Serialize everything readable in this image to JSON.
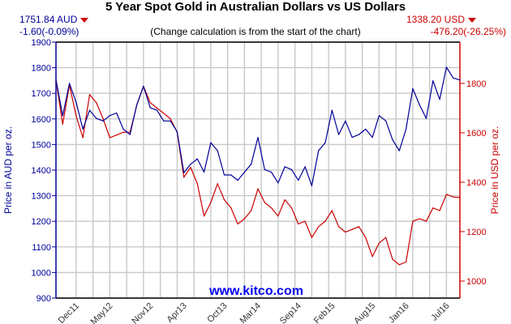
{
  "header": {
    "title": "5 Year Spot Gold in Australian Dollars vs US Dollars",
    "note": "(Change calculation is from the start of the chart)",
    "aud_price": "1751.84 AUD",
    "aud_change": "-1.60(-0.09%)",
    "usd_price": "1338.20 USD",
    "usd_change": "-476.20(-26.25%)",
    "down_arrow_icon": "triangle-down",
    "watermark": "www.kitco.com"
  },
  "chart_data": {
    "type": "line",
    "title": "5 Year Spot Gold in Australian Dollars vs US Dollars",
    "ylabel_left": "Price in AUD per oz.",
    "ylabel_right": "Price in USD per oz.",
    "ylim_left": [
      900,
      1900
    ],
    "yticks_left": [
      900,
      1000,
      1100,
      1200,
      1300,
      1400,
      1500,
      1600,
      1700,
      1800,
      1900
    ],
    "ylim_right": [
      931,
      1967
    ],
    "yticks_right": [
      1000,
      1200,
      1400,
      1600,
      1800
    ],
    "xlim": [
      "2011-09",
      "2016-09"
    ],
    "xticks": [
      {
        "label": "Dec11",
        "date": "2011-12"
      },
      {
        "label": "May12",
        "date": "2012-05"
      },
      {
        "label": "Nov12",
        "date": "2012-11"
      },
      {
        "label": "Apr13",
        "date": "2013-04"
      },
      {
        "label": "Oct13",
        "date": "2013-10"
      },
      {
        "label": "Mar14",
        "date": "2014-03"
      },
      {
        "label": "Sep14",
        "date": "2014-09"
      },
      {
        "label": "Feb15",
        "date": "2015-02"
      },
      {
        "label": "Aug15",
        "date": "2015-08"
      },
      {
        "label": "Jan16",
        "date": "2016-01"
      },
      {
        "label": "Jul16",
        "date": "2016-07"
      }
    ],
    "grid": true,
    "colors": {
      "aud": "#000099",
      "usd": "#cc0000",
      "grid": "#c8c8c8"
    },
    "x": [
      "2011-09",
      "2011-10",
      "2011-11",
      "2011-12",
      "2012-01",
      "2012-02",
      "2012-03",
      "2012-04",
      "2012-05",
      "2012-06",
      "2012-07",
      "2012-08",
      "2012-09",
      "2012-10",
      "2012-11",
      "2012-12",
      "2013-01",
      "2013-02",
      "2013-03",
      "2013-04",
      "2013-05",
      "2013-06",
      "2013-07",
      "2013-08",
      "2013-09",
      "2013-10",
      "2013-11",
      "2013-12",
      "2014-01",
      "2014-02",
      "2014-03",
      "2014-04",
      "2014-05",
      "2014-06",
      "2014-07",
      "2014-08",
      "2014-09",
      "2014-10",
      "2014-11",
      "2014-12",
      "2015-01",
      "2015-02",
      "2015-03",
      "2015-04",
      "2015-05",
      "2015-06",
      "2015-07",
      "2015-08",
      "2015-09",
      "2015-10",
      "2015-11",
      "2015-12",
      "2016-01",
      "2016-02",
      "2016-03",
      "2016-04",
      "2016-05",
      "2016-06",
      "2016-07",
      "2016-08",
      "2016-09"
    ],
    "series": [
      {
        "axis": "left",
        "values": [
          1753.44,
          1613,
          1739,
          1665,
          1560,
          1634,
          1602,
          1592,
          1613,
          1623,
          1560,
          1539,
          1655,
          1728,
          1644,
          1634,
          1592,
          1592,
          1550,
          1390,
          1423,
          1444,
          1392,
          1507,
          1476,
          1381,
          1381,
          1360,
          1392,
          1423,
          1528,
          1402,
          1392,
          1350,
          1413,
          1402,
          1360,
          1413,
          1339,
          1476,
          1507,
          1634,
          1539,
          1592,
          1528,
          1539,
          1560,
          1528,
          1613,
          1592,
          1518,
          1476,
          1560,
          1718,
          1655,
          1602,
          1749,
          1676,
          1802,
          1760,
          1751.84
        ]
      },
      {
        "axis": "right",
        "values": [
          1814.4,
          1635,
          1793,
          1668,
          1580,
          1755,
          1722,
          1657,
          1580,
          1591,
          1602,
          1602,
          1711,
          1788,
          1722,
          1700,
          1679,
          1657,
          1602,
          1420,
          1460,
          1394,
          1263,
          1318,
          1394,
          1329,
          1296,
          1231,
          1252,
          1285,
          1373,
          1318,
          1296,
          1263,
          1329,
          1296,
          1231,
          1242,
          1176,
          1220,
          1242,
          1285,
          1220,
          1198,
          1209,
          1220,
          1176,
          1099,
          1154,
          1176,
          1088,
          1066,
          1077,
          1242,
          1252,
          1242,
          1296,
          1285,
          1351,
          1340,
          1338.2
        ]
      }
    ]
  }
}
